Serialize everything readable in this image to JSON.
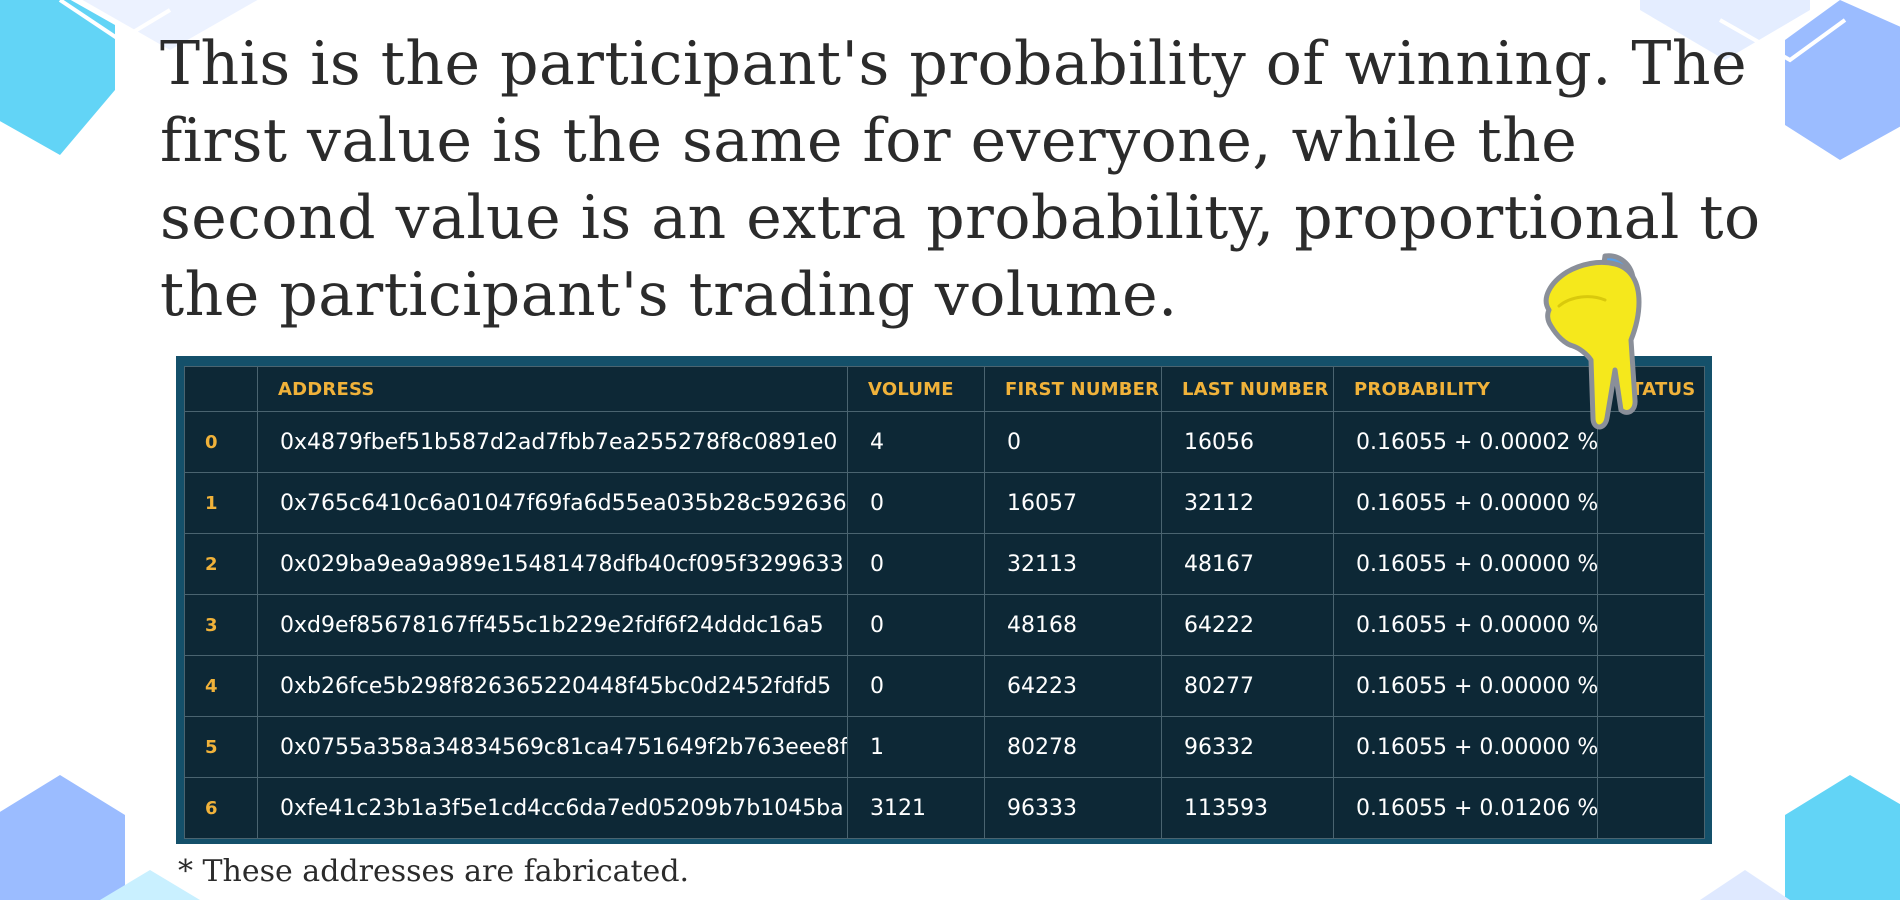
{
  "heading": "This is the participant's probability of winning. The first value is the same for everyone, while the second value is an extra probability, proportional to the participant's trading volume.",
  "table": {
    "columns": [
      "",
      "ADDRESS",
      "VOLUME",
      "FIRST NUMBER",
      "LAST NUMBER",
      "PROBABILITY",
      "STATUS"
    ],
    "rows": [
      {
        "index": "0",
        "address": "0x4879fbef51b587d2ad7fbb7ea255278f8c0891e0",
        "volume": "4",
        "first": "0",
        "last": "16056",
        "probability": "0.16055 + 0.00002 %",
        "status": ""
      },
      {
        "index": "1",
        "address": "0x765c6410c6a01047f69fa6d55ea035b28c592636",
        "volume": "0",
        "first": "16057",
        "last": "32112",
        "probability": "0.16055 + 0.00000 %",
        "status": ""
      },
      {
        "index": "2",
        "address": "0x029ba9ea9a989e15481478dfb40cf095f3299633",
        "volume": "0",
        "first": "32113",
        "last": "48167",
        "probability": "0.16055 + 0.00000 %",
        "status": ""
      },
      {
        "index": "3",
        "address": "0xd9ef85678167ff455c1b229e2fdf6f24dddc16a5",
        "volume": "0",
        "first": "48168",
        "last": "64222",
        "probability": "0.16055 + 0.00000 %",
        "status": ""
      },
      {
        "index": "4",
        "address": "0xb26fce5b298f826365220448f45bc0d2452fdfd5",
        "volume": "0",
        "first": "64223",
        "last": "80277",
        "probability": "0.16055 + 0.00000 %",
        "status": ""
      },
      {
        "index": "5",
        "address": "0x0755a358a34834569c81ca4751649f2b763eee8f",
        "volume": "1",
        "first": "80278",
        "last": "96332",
        "probability": "0.16055 + 0.00000 %",
        "status": ""
      },
      {
        "index": "6",
        "address": "0xfe41c23b1a3f5e1cd4cc6da7ed05209b7b1045ba",
        "volume": "3121",
        "first": "96333",
        "last": "113593",
        "probability": "0.16055 + 0.01206 %",
        "status": ""
      }
    ]
  },
  "footnote": "* These addresses are fabricated.",
  "icons": {
    "pointer": "pointing-hand-icon"
  },
  "colors": {
    "header_text": "#f0b23a",
    "table_bg": "#0d2836",
    "frame": "#14506a",
    "hexagon_cyan": "#62d4f6",
    "hexagon_blue": "#9bbcff"
  }
}
